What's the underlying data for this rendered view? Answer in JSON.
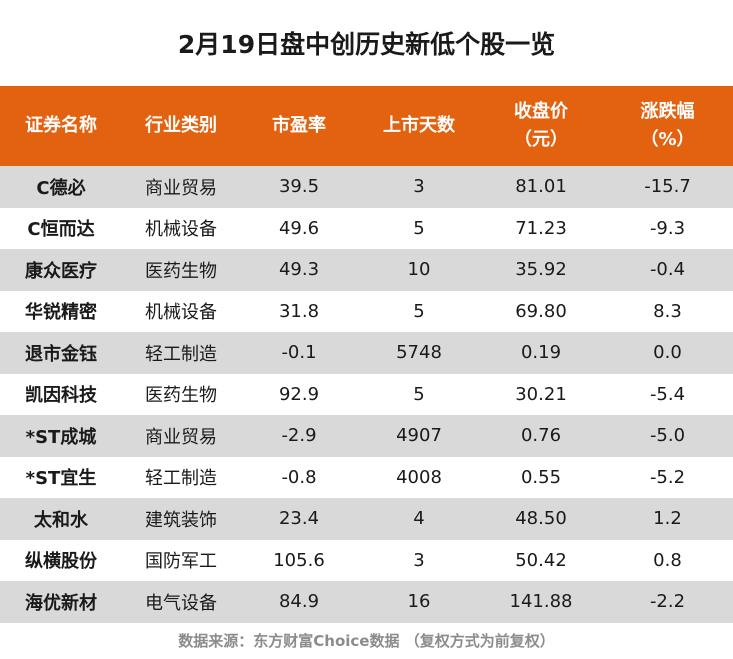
{
  "title": "2月19日盘中创历史新低个股一览",
  "columns": [
    {
      "line1": "证券名称",
      "line2": ""
    },
    {
      "line1": "行业类别",
      "line2": ""
    },
    {
      "line1": "市盈率",
      "line2": ""
    },
    {
      "line1": "上市天数",
      "line2": ""
    },
    {
      "line1": "收盘价",
      "line2": "（元）"
    },
    {
      "line1": "涨跌幅",
      "line2": "（%）"
    }
  ],
  "rows": [
    {
      "name": "C德必",
      "industry": "商业贸易",
      "pe": "39.5",
      "days": "3",
      "close": "81.01",
      "change": "-15.7"
    },
    {
      "name": "C恒而达",
      "industry": "机械设备",
      "pe": "49.6",
      "days": "5",
      "close": "71.23",
      "change": "-9.3"
    },
    {
      "name": "康众医疗",
      "industry": "医药生物",
      "pe": "49.3",
      "days": "10",
      "close": "35.92",
      "change": "-0.4"
    },
    {
      "name": "华锐精密",
      "industry": "机械设备",
      "pe": "31.8",
      "days": "5",
      "close": "69.80",
      "change": "8.3"
    },
    {
      "name": "退市金钰",
      "industry": "轻工制造",
      "pe": "-0.1",
      "days": "5748",
      "close": "0.19",
      "change": "0.0"
    },
    {
      "name": "凯因科技",
      "industry": "医药生物",
      "pe": "92.9",
      "days": "5",
      "close": "30.21",
      "change": "-5.4"
    },
    {
      "name": "*ST成城",
      "industry": "商业贸易",
      "pe": "-2.9",
      "days": "4907",
      "close": "0.76",
      "change": "-5.0"
    },
    {
      "name": "*ST宜生",
      "industry": "轻工制造",
      "pe": "-0.8",
      "days": "4008",
      "close": "0.55",
      "change": "-5.2"
    },
    {
      "name": "太和水",
      "industry": "建筑装饰",
      "pe": "23.4",
      "days": "4",
      "close": "48.50",
      "change": "1.2"
    },
    {
      "name": "纵横股份",
      "industry": "国防军工",
      "pe": "105.6",
      "days": "3",
      "close": "50.42",
      "change": "0.8"
    },
    {
      "name": "海优新材",
      "industry": "电气设备",
      "pe": "84.9",
      "days": "16",
      "close": "141.88",
      "change": "-2.2"
    }
  ],
  "footer": "数据来源：东方财富Choice数据 （复权方式为前复权）",
  "colors": {
    "header_bg": "#e2620f",
    "stripe": "#d9d9d9",
    "footer_text": "#8c8c8c"
  }
}
